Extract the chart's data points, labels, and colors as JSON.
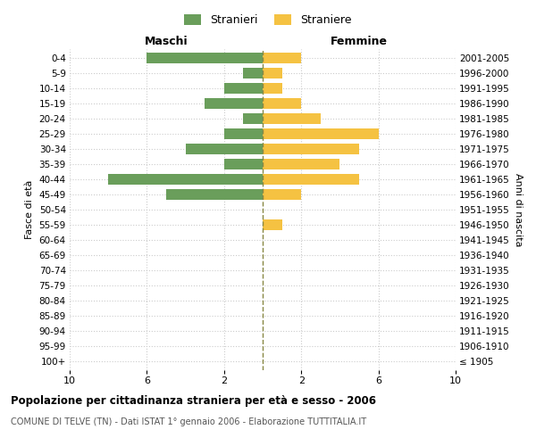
{
  "age_groups": [
    "100+",
    "95-99",
    "90-94",
    "85-89",
    "80-84",
    "75-79",
    "70-74",
    "65-69",
    "60-64",
    "55-59",
    "50-54",
    "45-49",
    "40-44",
    "35-39",
    "30-34",
    "25-29",
    "20-24",
    "15-19",
    "10-14",
    "5-9",
    "0-4"
  ],
  "birth_years": [
    "≤ 1905",
    "1906-1910",
    "1911-1915",
    "1916-1920",
    "1921-1925",
    "1926-1930",
    "1931-1935",
    "1936-1940",
    "1941-1945",
    "1946-1950",
    "1951-1955",
    "1956-1960",
    "1961-1965",
    "1966-1970",
    "1971-1975",
    "1976-1980",
    "1981-1985",
    "1986-1990",
    "1991-1995",
    "1996-2000",
    "2001-2005"
  ],
  "maschi": [
    0,
    0,
    0,
    0,
    0,
    0,
    0,
    0,
    0,
    0,
    0,
    5,
    8,
    2,
    4,
    2,
    1,
    3,
    2,
    1,
    6
  ],
  "femmine": [
    0,
    0,
    0,
    0,
    0,
    0,
    0,
    0,
    0,
    1,
    0,
    2,
    5,
    4,
    5,
    6,
    3,
    2,
    1,
    1,
    2
  ],
  "xlim": 10,
  "maschi_color": "#6a9e5b",
  "femmine_color": "#f5c242",
  "center_line_color": "#888844",
  "grid_color": "#cccccc",
  "title": "Popolazione per cittadinanza straniera per età e sesso - 2006",
  "subtitle": "COMUNE DI TELVE (TN) - Dati ISTAT 1° gennaio 2006 - Elaborazione TUTTITALIA.IT",
  "left_header": "Maschi",
  "right_header": "Femmine",
  "left_yaxis_label": "Fasce di età",
  "right_yaxis_label": "Anni di nascita",
  "legend_stranieri": "Stranieri",
  "legend_straniere": "Straniere",
  "bg_color": "#ffffff"
}
